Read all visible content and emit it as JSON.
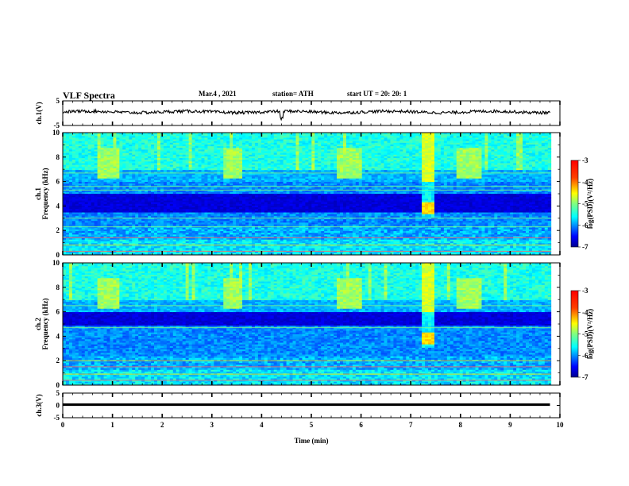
{
  "header": {
    "title": "VLF Spectra",
    "date": "Mar.4 , 2021",
    "station": "station= ATH",
    "start": "start UT = 20: 20: 1"
  },
  "chart_data": [
    {
      "type": "line",
      "panel": "ch1-waveform",
      "ylabel": "ch.1(V)",
      "ylim": [
        -5,
        5
      ],
      "yticks": [
        "5",
        "-5"
      ],
      "xlim": [
        0,
        10
      ],
      "series": [
        {
          "approx_mean_volts": 0.5,
          "approx_amplitude_volts": 0.6,
          "end_min": 9.8
        }
      ]
    },
    {
      "type": "heatmap",
      "panel": "ch1-spectrogram",
      "ylabel": "ch.1\nFrequency (kHz)",
      "ylim": [
        0,
        10
      ],
      "yticks": [
        "0",
        "2",
        "4",
        "6",
        "8",
        "10"
      ],
      "xlim": [
        0,
        10
      ],
      "colorbar": {
        "label": "log(PSD)(V²/Hz)",
        "range": [
          -7,
          -3
        ],
        "ticks": [
          "-3",
          "-4",
          "-5",
          "-6",
          "-7"
        ]
      },
      "bursts_min": [
        [
          0.7,
          1.15
        ],
        [
          3.2,
          3.6
        ],
        [
          5.5,
          6.0
        ],
        [
          7.2,
          7.5
        ],
        [
          7.9,
          8.4
        ]
      ],
      "strong_event_min": [
        7.2,
        7.5
      ],
      "dark_band_khz": [
        3.5,
        5.0
      ],
      "carrier_lines_khz": [
        0.3,
        0.8,
        1.4,
        2.3,
        3.0,
        5.3,
        5.6,
        6.7
      ]
    },
    {
      "type": "heatmap",
      "panel": "ch2-spectrogram",
      "ylabel": "ch.2\nFrequency (kHz)",
      "ylim": [
        0,
        10
      ],
      "yticks": [
        "0",
        "2",
        "4",
        "6",
        "8",
        "10"
      ],
      "xlim": [
        0,
        10
      ],
      "colorbar": {
        "label": "log(PSD)(V²/Hz)",
        "range": [
          -7,
          -3
        ],
        "ticks": [
          "-3",
          "-4",
          "-5",
          "-6",
          "-7"
        ]
      },
      "bursts_min": [
        [
          0.7,
          1.15
        ],
        [
          3.2,
          3.6
        ],
        [
          5.5,
          6.0
        ],
        [
          7.2,
          7.5
        ],
        [
          7.9,
          8.4
        ]
      ],
      "strong_event_min": [
        7.2,
        7.5
      ],
      "dark_band_khz": [
        4.8,
        6.0
      ],
      "carrier_lines_khz": [
        0.4,
        0.9,
        1.5,
        2.0,
        4.7,
        6.5
      ]
    },
    {
      "type": "line",
      "panel": "ch3-waveform",
      "ylabel": "ch.3(V)",
      "ylim": [
        -5,
        5
      ],
      "yticks": [
        "5",
        "0",
        "-5"
      ],
      "xlim": [
        0,
        10
      ],
      "series": [
        {
          "approx_level_volts": 0.3,
          "thickness_volts": 1.0,
          "end_min": 9.8
        }
      ]
    }
  ],
  "xaxis": {
    "label": "Time (min)",
    "ticks": [
      "0",
      "1",
      "2",
      "3",
      "4",
      "5",
      "6",
      "7",
      "8",
      "9",
      "10"
    ]
  },
  "colors": {
    "jet": [
      "#00008f",
      "#0000ff",
      "#0080ff",
      "#00ffff",
      "#80ff80",
      "#ffff00",
      "#ff8000",
      "#ff0000",
      "#800000"
    ],
    "axis": "#000000"
  }
}
